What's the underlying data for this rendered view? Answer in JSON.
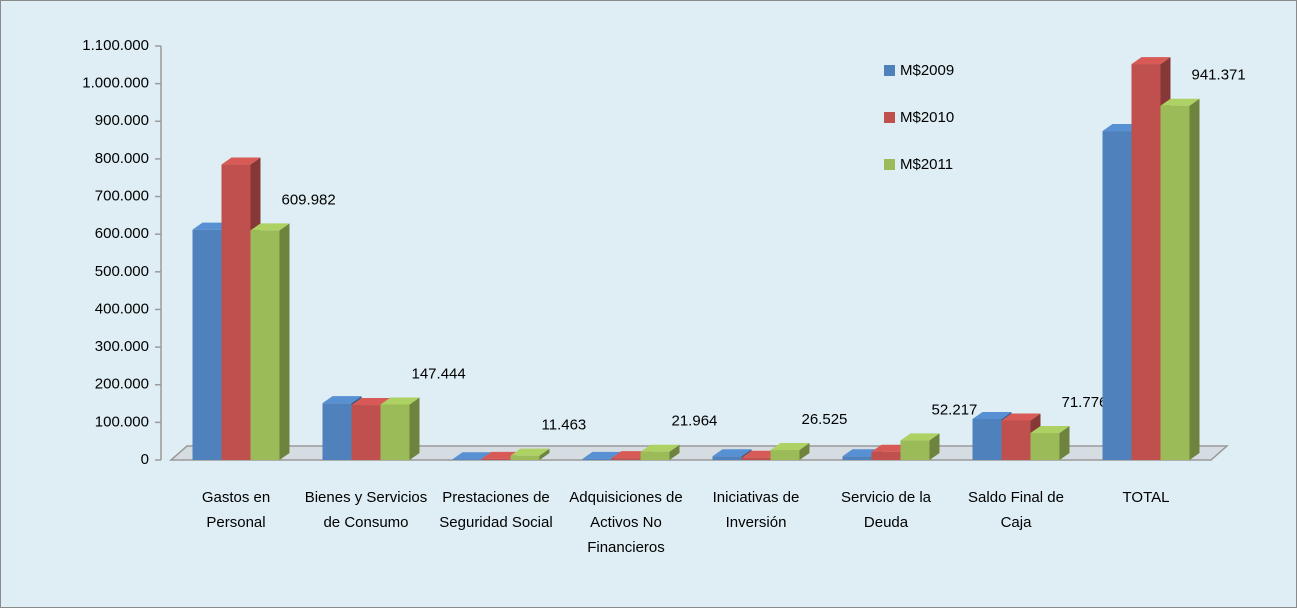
{
  "chart_data": {
    "type": "bar3d",
    "categories": [
      "Gastos en Personal",
      "Bienes y Servicios de Consumo",
      "Prestaciones de Seguridad Social",
      "Adquisiciones de Activos No Financieros",
      "Iniciativas de Inversión",
      "Servicio de la Deuda",
      "Saldo Final de Caja",
      "TOTAL"
    ],
    "series": [
      {
        "name": "M$2009",
        "color": "#4f81bd",
        "values": [
          612000,
          151000,
          2000,
          3000,
          10000,
          10000,
          109000,
          874000
        ]
      },
      {
        "name": "M$2010",
        "color": "#c0504d",
        "values": [
          785000,
          146000,
          3000,
          5000,
          6000,
          22000,
          105000,
          1052000
        ]
      },
      {
        "name": "M$2011",
        "color": "#9bbb59",
        "values": [
          609982,
          147444,
          11463,
          21964,
          26525,
          52217,
          71776,
          941371
        ],
        "value_labels": [
          "609.982",
          "147.444",
          "11.463",
          "21.964",
          "26.525",
          "52.217",
          "71.776",
          "941.371"
        ]
      }
    ],
    "ylim": [
      0,
      1100000
    ],
    "yticks": [
      0,
      {
        "value": 100000,
        "label": "100.000"
      },
      {
        "value": 200000,
        "label": "200.000"
      },
      {
        "value": 300000,
        "label": "300.000"
      },
      {
        "value": 400000,
        "label": "400.000"
      },
      {
        "value": 500000,
        "label": "500.000"
      },
      {
        "value": 600000,
        "label": "600.000"
      },
      {
        "value": 700000,
        "label": "700.000"
      },
      {
        "value": 800000,
        "label": "800.000"
      },
      {
        "value": 900000,
        "label": "900.000"
      },
      {
        "value": 1000000,
        "label": "1.000.000"
      },
      {
        "value": 1100000,
        "label": "1.100.000"
      }
    ],
    "grid": false,
    "legend": "top-right"
  }
}
